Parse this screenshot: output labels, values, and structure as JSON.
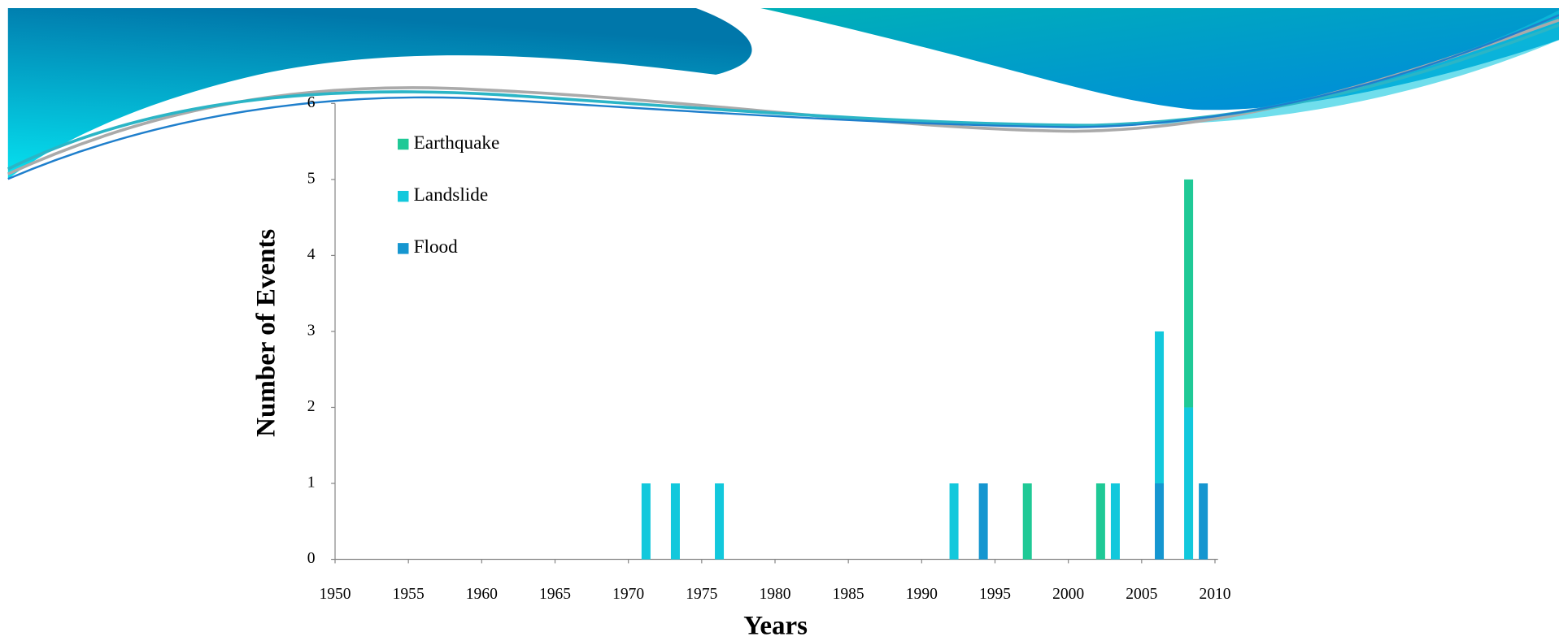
{
  "chart_data": {
    "type": "bar",
    "stacked": true,
    "x_label": "Years",
    "y_label": "Number of  Events",
    "x": [
      1971,
      1973,
      1976,
      1992,
      1994,
      1997,
      2002,
      2003,
      2006,
      2008,
      2009
    ],
    "series": [
      {
        "name": "Earthquake",
        "color": "#1fc996",
        "values": [
          0,
          0,
          0,
          0,
          0,
          1,
          1,
          0,
          0,
          3,
          0
        ]
      },
      {
        "name": "Landslide",
        "color": "#12c8dc",
        "values": [
          1,
          1,
          1,
          1,
          0,
          0,
          0,
          1,
          2,
          2,
          0
        ]
      },
      {
        "name": "Flood",
        "color": "#1596d0",
        "values": [
          0,
          0,
          0,
          0,
          1,
          0,
          0,
          0,
          1,
          0,
          1
        ]
      }
    ],
    "xlim": [
      1950,
      2010
    ],
    "xticks": [
      1950,
      1955,
      1960,
      1965,
      1970,
      1975,
      1980,
      1985,
      1990,
      1995,
      2000,
      2005,
      2010
    ],
    "ylim": [
      0,
      6
    ],
    "yticks": [
      0,
      1,
      2,
      3,
      4,
      5,
      6
    ],
    "legend": "upper-left"
  }
}
